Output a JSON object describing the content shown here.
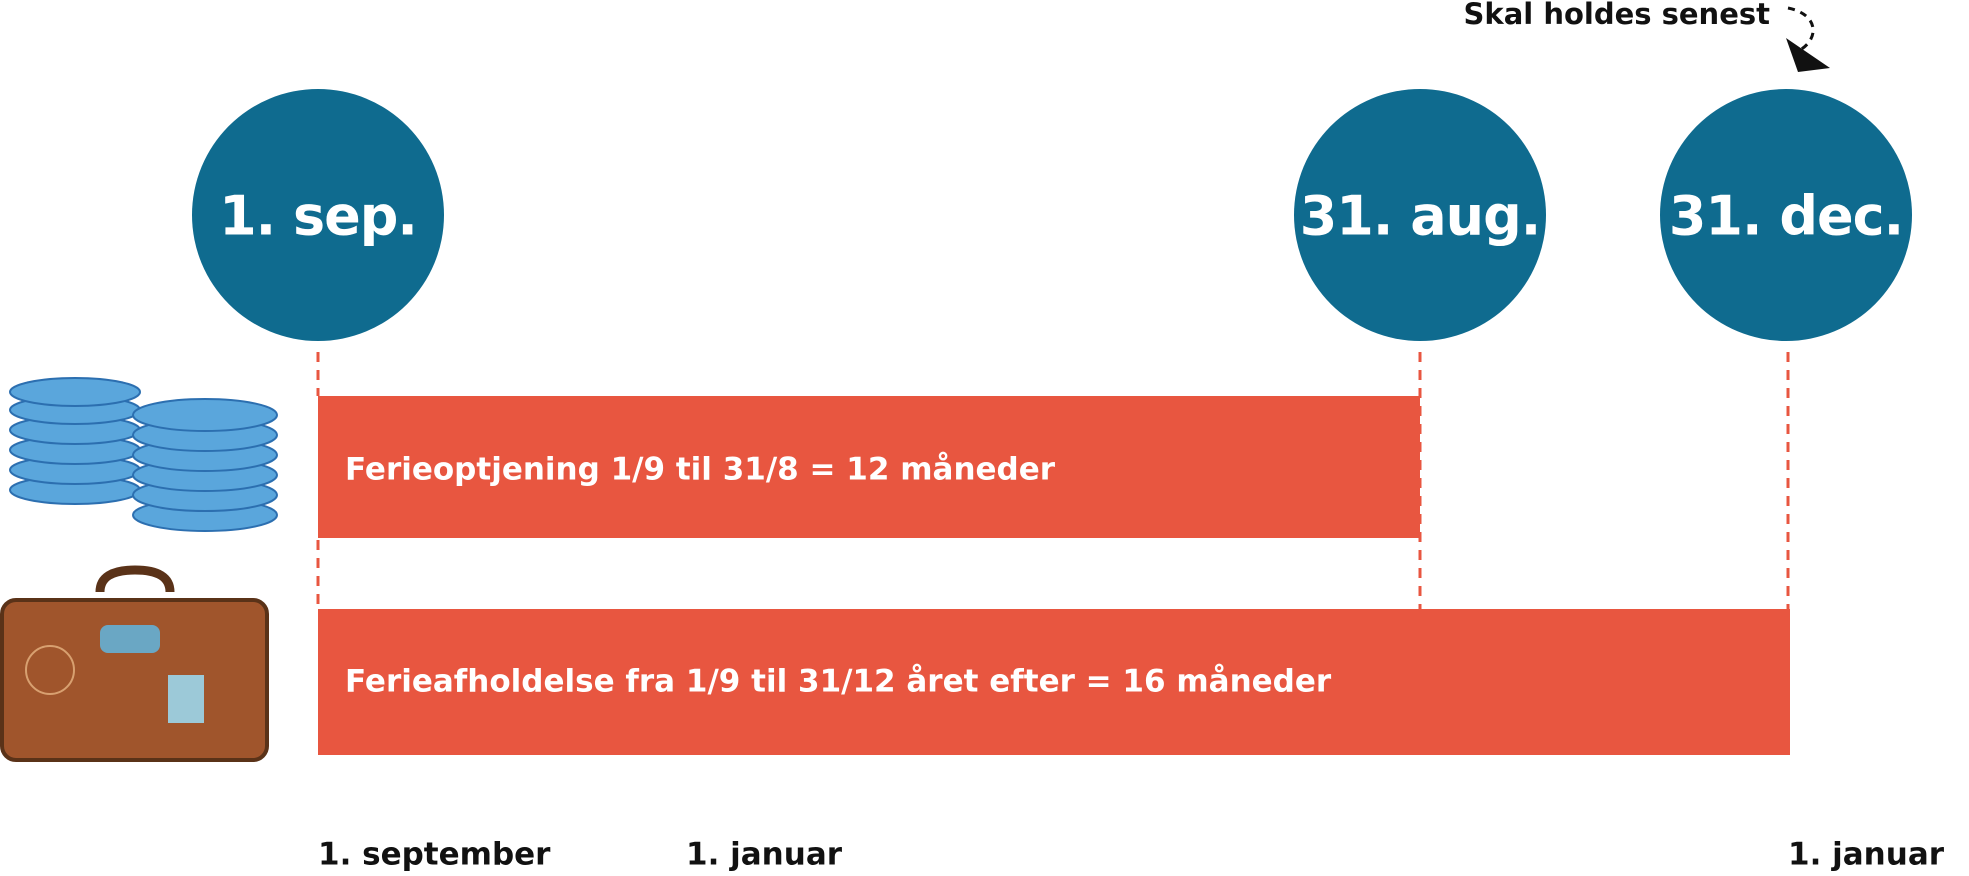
{
  "annotation": "Skal holdes senest",
  "nodes": [
    {
      "label": "1. sep."
    },
    {
      "label": "31. aug."
    },
    {
      "label": "31. dec."
    }
  ],
  "bars": [
    {
      "label": "Ferieoptjening 1/9 til 31/8 = 12 måneder"
    },
    {
      "label": "Ferieafholdelse fra 1/9 til 31/12 året efter  = 16 måneder"
    }
  ],
  "timeline": [
    {
      "label": "1. september"
    },
    {
      "label": "1. januar"
    },
    {
      "label": "1. januar"
    }
  ]
}
